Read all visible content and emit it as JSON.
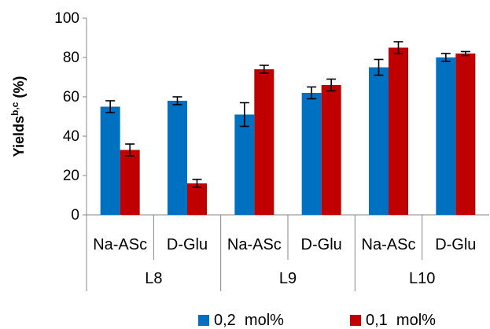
{
  "chart_data": {
    "type": "bar",
    "title": "",
    "ylabel": "Yields",
    "ylabel_sup": "b,c",
    "ylabel_suffix": " (%)",
    "ylim": [
      0,
      100
    ],
    "yticks": [
      "0",
      "20",
      "40",
      "60",
      "80",
      "100"
    ],
    "grid": false,
    "legend_position": "bottom",
    "categories": [
      "Na-ASc",
      "D-Glu",
      "Na-ASc",
      "D-Glu",
      "Na-ASc",
      "D-Glu"
    ],
    "groups": [
      {
        "label": "L8",
        "span": [
          0,
          1
        ]
      },
      {
        "label": "L9",
        "span": [
          2,
          3
        ]
      },
      {
        "label": "L10",
        "span": [
          4,
          5
        ]
      }
    ],
    "series": [
      {
        "name": "0,2  mol%",
        "color": "#0070C0",
        "values": [
          55,
          58,
          51,
          62,
          75,
          80
        ],
        "errors": [
          3,
          2,
          6,
          3,
          4,
          2
        ]
      },
      {
        "name": "0,1  mol%",
        "color": "#C00000",
        "values": [
          33,
          16,
          74,
          66,
          85,
          82
        ],
        "errors": [
          3,
          2,
          2,
          3,
          3,
          1
        ]
      }
    ]
  }
}
